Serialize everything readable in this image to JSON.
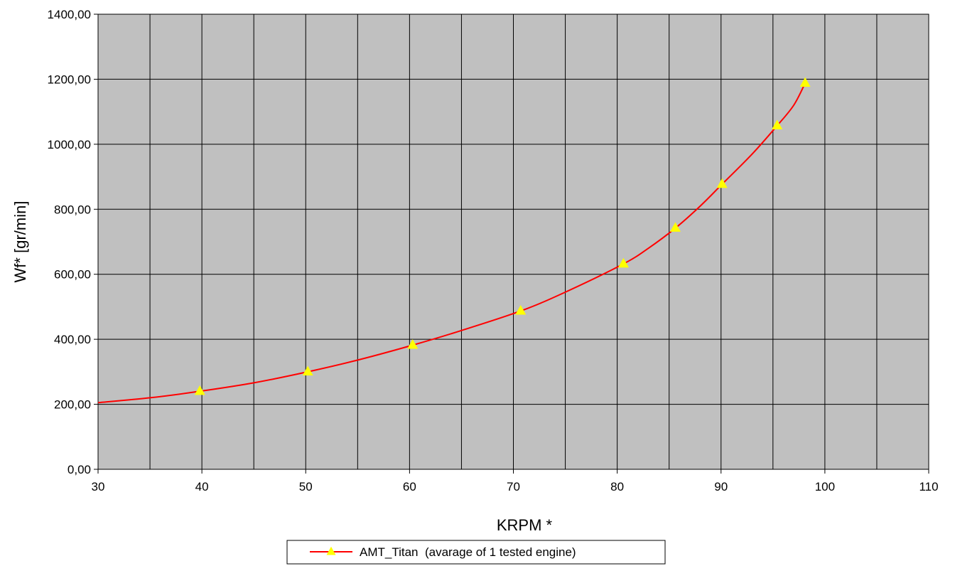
{
  "chart_data": {
    "type": "line",
    "xlabel": "KRPM *",
    "ylabel": "Wf* [gr/min]",
    "xlim": [
      30,
      110
    ],
    "ylim": [
      0,
      1400
    ],
    "x_major_ticks": [
      30,
      40,
      50,
      60,
      70,
      80,
      90,
      100,
      110
    ],
    "x_tick_labels": [
      "30",
      "40",
      "50",
      "60",
      "70",
      "80",
      "90",
      "100",
      "110"
    ],
    "x_grid_step": 5,
    "y_ticks": [
      0,
      200,
      400,
      600,
      800,
      1000,
      1200,
      1400
    ],
    "y_tick_labels": [
      "0,00",
      "200,00",
      "400,00",
      "600,00",
      "800,00",
      "1000,00",
      "1200,00",
      "1400,00"
    ],
    "grid": true,
    "plot_background": "#c0c0c0",
    "legend_position": "bottom-center",
    "series": [
      {
        "name": "AMT_Titan  (avarage of 1 tested engine)",
        "line_color": "#ff0000",
        "marker": "triangle",
        "marker_color": "#ffff00",
        "points": [
          {
            "x": 39.8,
            "y": 240
          },
          {
            "x": 50.2,
            "y": 300
          },
          {
            "x": 60.3,
            "y": 382
          },
          {
            "x": 70.7,
            "y": 487
          },
          {
            "x": 80.6,
            "y": 632
          },
          {
            "x": 85.6,
            "y": 742
          },
          {
            "x": 90.1,
            "y": 877
          },
          {
            "x": 95.4,
            "y": 1057
          },
          {
            "x": 98.1,
            "y": 1188
          }
        ],
        "curve": [
          {
            "x": 30.0,
            "y": 205
          },
          {
            "x": 35.0,
            "y": 220
          },
          {
            "x": 39.8,
            "y": 240
          },
          {
            "x": 45.0,
            "y": 266
          },
          {
            "x": 50.2,
            "y": 300
          },
          {
            "x": 55.0,
            "y": 336
          },
          {
            "x": 60.3,
            "y": 382
          },
          {
            "x": 65.0,
            "y": 427
          },
          {
            "x": 70.7,
            "y": 487
          },
          {
            "x": 75.0,
            "y": 545
          },
          {
            "x": 80.6,
            "y": 632
          },
          {
            "x": 83.0,
            "y": 680
          },
          {
            "x": 85.6,
            "y": 742
          },
          {
            "x": 88.0,
            "y": 810
          },
          {
            "x": 90.1,
            "y": 877
          },
          {
            "x": 93.0,
            "y": 970
          },
          {
            "x": 95.4,
            "y": 1057
          },
          {
            "x": 97.0,
            "y": 1120
          },
          {
            "x": 98.1,
            "y": 1188
          }
        ]
      }
    ]
  }
}
